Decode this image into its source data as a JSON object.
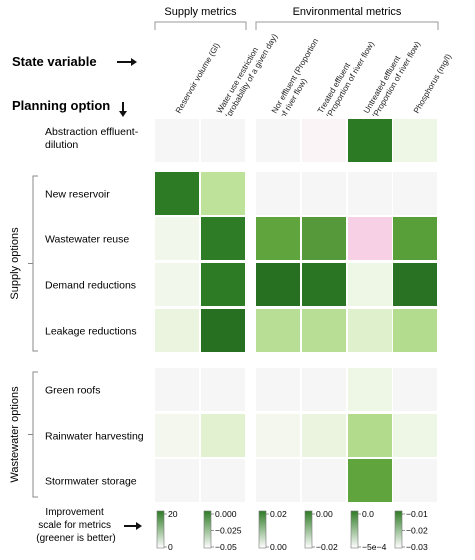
{
  "chart_data": {
    "type": "heatmap",
    "metric_groups": [
      {
        "label": "Supply metrics",
        "columns": [
          0,
          1
        ]
      },
      {
        "label": "Environmental metrics",
        "columns": [
          2,
          3,
          4,
          5
        ]
      }
    ],
    "state_variable_label": "State variable",
    "planning_option_label": "Planning option",
    "columns": [
      "Reservoir volume (Gl)",
      "Water use restriction (probability of a given day)",
      "Nor effluent (Proportion of river flow)",
      "Treated effluent (Proportion of river flow)",
      "Untreated effluent (Proportion of river flow)",
      "Phosphorus (mg/l)"
    ],
    "row_groups": [
      {
        "label": "",
        "rows": [
          0
        ]
      },
      {
        "label": "Supply options",
        "rows": [
          1,
          2,
          3,
          4
        ]
      },
      {
        "label": "Wastewater options",
        "rows": [
          5,
          6,
          7
        ]
      }
    ],
    "rows": [
      "Abstraction effluent-dilution",
      "New reservoir",
      "Wastewater reuse",
      "Demand reductions",
      "Leakage reductions",
      "Green roofs",
      "Rainwater harvesting",
      "Stormwater storage"
    ],
    "cell_colors": [
      [
        "#f6f6f6",
        "#f6f6f6",
        "#f6f6f6",
        "#faf4f6",
        "#2d7a24",
        "#eef6e6"
      ],
      [
        "#2e7b25",
        "#bfe29a",
        "#f6f6f6",
        "#f6f6f6",
        "#f6f6f6",
        "#f6f6f6"
      ],
      [
        "#f1f7ea",
        "#2f7c26",
        "#5fa43d",
        "#55993a",
        "#f7d0e6",
        "#589f3a"
      ],
      [
        "#f2f7ec",
        "#2e7b25",
        "#276f21",
        "#2a7523",
        "#eef6e6",
        "#2a7223"
      ],
      [
        "#eaf4df",
        "#276f21",
        "#b8de95",
        "#b8de95",
        "#dff0cc",
        "#b4dc8f"
      ],
      [
        "#f6f6f6",
        "#f6f6f6",
        "#f6f6f6",
        "#f6f6f6",
        "#eef6e6",
        "#f6f6f6"
      ],
      [
        "#f3f7ee",
        "#e2f2d0",
        "#f3f7ee",
        "#eaf4df",
        "#b2db8c",
        "#eef6e6"
      ],
      [
        "#f6f6f6",
        "#f6f6f6",
        "#f6f6f6",
        "#f6f6f6",
        "#5fa43d",
        "#f6f6f6"
      ]
    ],
    "legend": {
      "title": "Improvement scale for metrics (greener is better)",
      "scales": [
        {
          "ticks": [
            "20",
            "0"
          ],
          "low": "#ffffff",
          "high": "#2e7b25"
        },
        {
          "ticks": [
            "0.000",
            "−0.025",
            "−0.05"
          ],
          "low": "#ffffff",
          "high": "#2e7b25"
        },
        {
          "ticks": [
            "0.02",
            "0.00"
          ],
          "low": "#ffffff",
          "high": "#2e7b25"
        },
        {
          "ticks": [
            "0.00",
            "−0.02"
          ],
          "low": "#ffffff",
          "high": "#2e7b25"
        },
        {
          "ticks": [
            "0.0",
            "−5e−4"
          ],
          "low": "#ffffff",
          "high": "#2e7b25"
        },
        {
          "ticks": [
            "−0.01",
            "−0.02",
            "−0.03"
          ],
          "low": "#ffffff",
          "high": "#2e7b25"
        }
      ]
    }
  }
}
